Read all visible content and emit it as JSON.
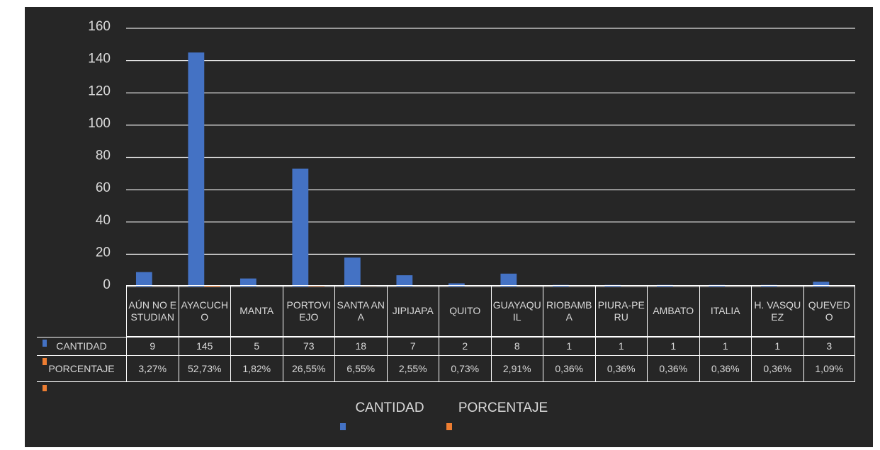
{
  "chart_data": {
    "type": "bar",
    "categories": [
      "AÚN NO ESTUDIAN",
      "AYACUCHO",
      "MANTA",
      "PORTOVIEJO",
      "SANTA ANA",
      "JIPIJAPA",
      "QUITO",
      "GUAYAQUIL",
      "RIOBAMBA",
      "PIURA-PERU",
      "AMBATO",
      "ITALIA",
      "H. VASQUEZ",
      "QUEVEDO"
    ],
    "series": [
      {
        "name": "CANTIDAD",
        "color": "#4472c4",
        "values": [
          9,
          145,
          5,
          73,
          18,
          7,
          2,
          8,
          1,
          1,
          1,
          1,
          1,
          3
        ]
      },
      {
        "name": "PORCENTAJE",
        "color": "#ed7d31",
        "values": [
          0.0327,
          0.5273,
          0.0182,
          0.2655,
          0.0655,
          0.0255,
          0.0073,
          0.0291,
          0.0036,
          0.0036,
          0.0036,
          0.0036,
          0.0036,
          0.0109
        ],
        "value_labels": [
          "3,27%",
          "52,73%",
          "1,82%",
          "26,55%",
          "6,55%",
          "2,55%",
          "0,73%",
          "2,91%",
          "0,36%",
          "0,36%",
          "0,36%",
          "0,36%",
          "0,36%",
          "1,09%"
        ]
      }
    ],
    "ylim": [
      0,
      160
    ],
    "yticks": [
      0,
      20,
      40,
      60,
      80,
      100,
      120,
      140,
      160
    ],
    "grid": true,
    "legend": "bottom"
  }
}
